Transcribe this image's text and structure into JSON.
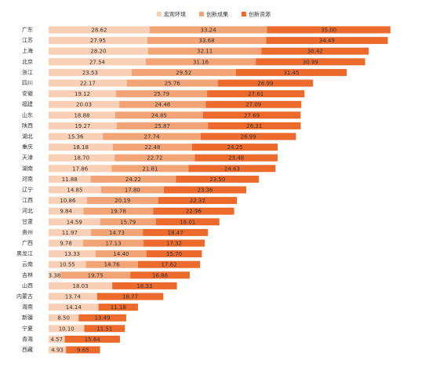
{
  "chart_data": {
    "type": "stacked-bar-horizontal",
    "categories": [
      "广东",
      "江苏",
      "上海",
      "北京",
      "浙江",
      "四川",
      "安徽",
      "福建",
      "山东",
      "陕西",
      "湖北",
      "重庆",
      "天津",
      "湖南",
      "河南",
      "辽宁",
      "江西",
      "河北",
      "甘肃",
      "贵州",
      "广西",
      "黑龙江",
      "云南",
      "吉林",
      "山西",
      "内蒙古",
      "海南",
      "新疆",
      "宁夏",
      "青海",
      "西藏"
    ],
    "series": [
      {
        "name": "宏观环境",
        "color": "#f9d0b5",
        "values": [
          28.62,
          27.95,
          28.2,
          27.54,
          23.53,
          22.17,
          19.12,
          20.03,
          18.88,
          19.27,
          15.36,
          18.18,
          18.7,
          17.86,
          11.88,
          14.85,
          10.86,
          9.84,
          14.59,
          11.97,
          9.78,
          13.33,
          10.55,
          3.38,
          18.03,
          13.74,
          14.14,
          8.5,
          10.1,
          4.57,
          4.93
        ],
        "value_labels": [
          "28.62",
          "27.95",
          "28.20",
          "27.54",
          "23.53",
          "22.17",
          "19.12",
          "20.03",
          "18.88",
          "19.27",
          "15.36",
          "18.18",
          "18.70",
          "17.86",
          "11.88",
          "14.85",
          "10.86",
          "9.84",
          "14.59",
          "11.97",
          "9.78",
          "13.33",
          "10.55",
          "3.38",
          "18.03",
          "13.74",
          "14.14",
          "8.50",
          "10.10",
          "4.57",
          "4.93"
        ]
      },
      {
        "name": "创新成果",
        "color": "#f3a477",
        "values": [
          33.24,
          33.68,
          32.11,
          31.16,
          29.52,
          25.76,
          25.79,
          24.48,
          24.85,
          25.87,
          27.74,
          22.48,
          22.72,
          21.81,
          24.22,
          17.8,
          20.19,
          19.78,
          15.79,
          14.73,
          17.13,
          14.4,
          14.76,
          19.75,
          null,
          null,
          null,
          null,
          null,
          null,
          null
        ],
        "value_labels": [
          "33.24",
          "33.68",
          "32.11",
          "31.16",
          "29.52",
          "25.76",
          "25.79",
          "24.48",
          "24.85",
          "25.87",
          "27.74",
          "22.48",
          "22.72",
          "21.81",
          "24.22",
          "17.80",
          "20.19",
          "19.78",
          "15.79",
          "14.73",
          "17.13",
          "14.40",
          "14.76",
          "19.75",
          null,
          null,
          null,
          null,
          null,
          null,
          null
        ]
      },
      {
        "name": "创新资源",
        "color": "#ec6a2c",
        "values": [
          35,
          34.49,
          30.42,
          30.99,
          31.45,
          26.99,
          27.61,
          27.09,
          27.69,
          26.31,
          26.99,
          24.25,
          23.48,
          24.63,
          23.5,
          23.36,
          22.32,
          22.96,
          18.01,
          18.47,
          17.32,
          15.7,
          17.62,
          16.86,
          18.33,
          18.77,
          11.18,
          13.49,
          11.51,
          15.64,
          9.65
        ],
        "value_labels": [
          "35.00",
          "34.49",
          "30.42",
          "30.99",
          "31.45",
          "26.99",
          "27.61",
          "27.09",
          "27.69",
          "26.31",
          "26.99",
          "24.25",
          "23.48",
          "24.63",
          "23.50",
          "23.36",
          "22.32",
          "22.96",
          "18.01",
          "18.47",
          "17.32",
          "15.70",
          "17.62",
          "16.86",
          "18.33",
          "18.77",
          "11.18",
          "13.49",
          "11.51",
          "15.64",
          "9.65"
        ]
      }
    ]
  }
}
